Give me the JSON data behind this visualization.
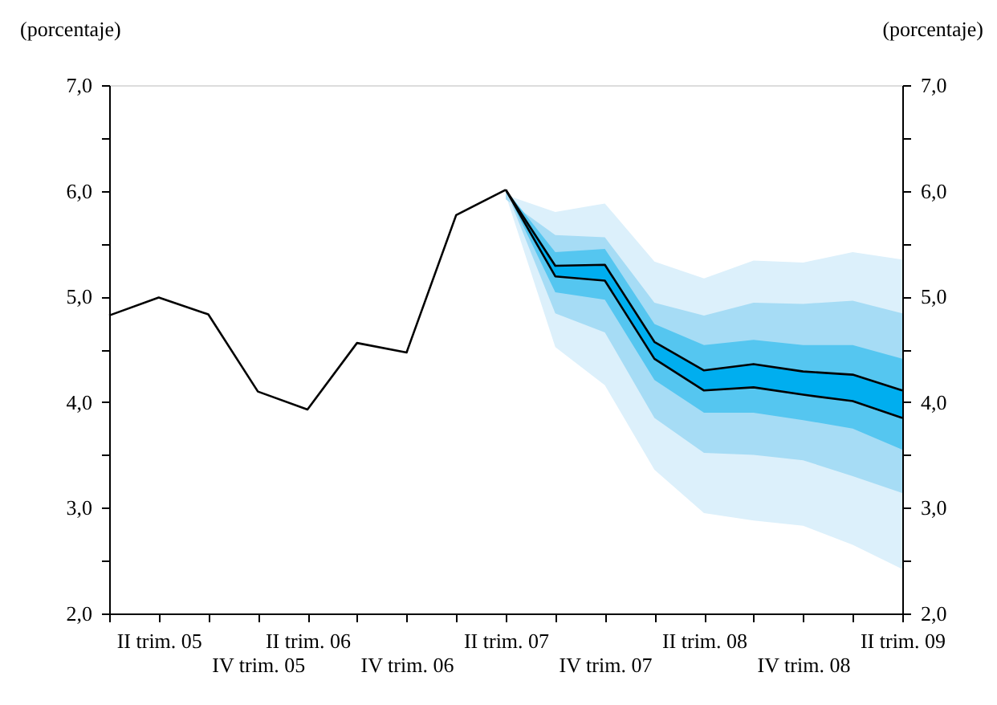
{
  "chart_data": {
    "type": "line",
    "ylabel": "(porcentaje)",
    "y2label": "(porcentaje)",
    "categories": [
      null,
      "II trim. 05",
      null,
      "IV trim. 05",
      "II trim. 06",
      null,
      "IV trim. 06",
      null,
      "II trim. 07",
      null,
      "IV trim. 07",
      null,
      "II trim. 08",
      null,
      "IV trim. 08",
      null,
      "II trim. 09"
    ],
    "ylim": [
      2,
      7
    ],
    "y2lim": [
      2,
      7
    ],
    "yticks": [
      {
        "value": 2,
        "label": "2,0"
      },
      {
        "value": 2.5,
        "label": null
      },
      {
        "value": 3,
        "label": "3,0"
      },
      {
        "value": 3.5,
        "label": null
      },
      {
        "value": 4,
        "label": "4,0"
      },
      {
        "value": 4.5,
        "label": null
      },
      {
        "value": 5,
        "label": "5,0"
      },
      {
        "value": 5.5,
        "label": null
      },
      {
        "value": 6,
        "label": "6,0"
      },
      {
        "value": 6.5,
        "label": null
      },
      {
        "value": 7,
        "label": "7,0"
      }
    ],
    "y2ticks": [
      {
        "value": 2,
        "label": "2,0"
      },
      {
        "value": 2.5,
        "label": null
      },
      {
        "value": 3,
        "label": "3,0"
      },
      {
        "value": 3.5,
        "label": null
      },
      {
        "value": 4,
        "label": "4,0"
      },
      {
        "value": 4.5,
        "label": null
      },
      {
        "value": 5,
        "label": "5,0"
      },
      {
        "value": 5.5,
        "label": null
      },
      {
        "value": 6,
        "label": "6,0"
      },
      {
        "value": 6.5,
        "label": null
      },
      {
        "value": 7,
        "label": "7,0"
      }
    ],
    "grid": false,
    "marker": "none",
    "line_style": "solid",
    "series": [
      {
        "type": "area",
        "color": "#dcf0fb",
        "values": [
          null,
          null,
          null,
          null,
          null,
          null,
          null,
          null,
          null,
          null,
          null,
          null,
          null,
          null,
          null,
          null,
          null
        ],
        "lower": [
          null,
          null,
          null,
          null,
          null,
          null,
          null,
          null,
          5.96,
          4.52,
          4.16,
          3.36,
          2.95,
          2.88,
          2.83,
          2.65,
          2.42
        ],
        "upper": [
          null,
          null,
          null,
          null,
          null,
          null,
          null,
          null,
          5.96,
          5.8,
          5.88,
          5.33,
          5.17,
          5.34,
          5.32,
          5.42,
          5.35
        ]
      },
      {
        "type": "area",
        "color": "#a6dcf5",
        "values": [
          null,
          null,
          null,
          null,
          null,
          null,
          null,
          null,
          null,
          null,
          null,
          null,
          null,
          null,
          null,
          null,
          null
        ],
        "lower": [
          null,
          null,
          null,
          null,
          null,
          null,
          null,
          null,
          6.01,
          4.84,
          4.66,
          3.85,
          3.52,
          3.5,
          3.45,
          3.3,
          3.14
        ],
        "upper": [
          null,
          null,
          null,
          null,
          null,
          null,
          null,
          null,
          5.92,
          5.58,
          5.56,
          4.94,
          4.82,
          4.94,
          4.93,
          4.96,
          4.84
        ]
      },
      {
        "type": "area",
        "color": "#55c6f0",
        "values": [
          null,
          null,
          null,
          null,
          null,
          null,
          null,
          null,
          null,
          null,
          null,
          null,
          null,
          null,
          null,
          null,
          null
        ],
        "lower": [
          null,
          null,
          null,
          null,
          null,
          null,
          null,
          null,
          6.01,
          5.04,
          4.97,
          4.21,
          3.9,
          3.9,
          3.83,
          3.75,
          3.55
        ],
        "upper": [
          null,
          null,
          null,
          null,
          null,
          null,
          null,
          null,
          6.01,
          5.42,
          5.45,
          4.74,
          4.54,
          4.59,
          4.54,
          4.54,
          4.41
        ]
      },
      {
        "type": "area",
        "color": "#00aeef",
        "values": [
          null,
          null,
          null,
          null,
          null,
          null,
          null,
          null,
          null,
          null,
          null,
          null,
          null,
          null,
          null,
          null,
          null
        ],
        "lower": [
          null,
          null,
          null,
          null,
          null,
          null,
          null,
          null,
          6.01,
          5.19,
          5.15,
          4.41,
          4.11,
          4.14,
          4.07,
          4.01,
          3.85
        ],
        "upper": [
          null,
          null,
          null,
          null,
          null,
          null,
          null,
          null,
          6.01,
          5.29,
          5.3,
          4.57,
          4.3,
          4.36,
          4.29,
          4.26,
          4.11
        ]
      },
      {
        "type": "line",
        "color": "#000000",
        "values": [
          4.82,
          4.99,
          4.83,
          4.1,
          3.93,
          4.56,
          4.47,
          5.77,
          6.01,
          null,
          null,
          null,
          null,
          null,
          null,
          null,
          null
        ]
      },
      {
        "type": "line",
        "color": "#000000",
        "values": [
          null,
          null,
          null,
          null,
          null,
          null,
          null,
          null,
          6.01,
          5.29,
          5.3,
          4.57,
          4.3,
          4.36,
          4.29,
          4.26,
          4.11
        ]
      },
      {
        "type": "line",
        "color": "#000000",
        "values": [
          null,
          null,
          null,
          null,
          null,
          null,
          null,
          null,
          6.01,
          5.19,
          5.15,
          4.41,
          4.11,
          4.14,
          4.07,
          4.01,
          3.85
        ]
      }
    ]
  }
}
